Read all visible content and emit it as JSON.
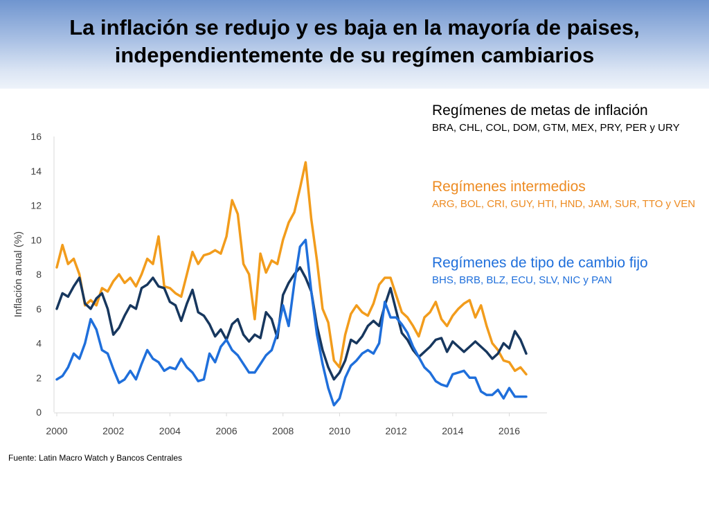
{
  "header": {
    "title_line1": "La inflación se redujo y es baja en la mayoría de paises,",
    "title_line2": "independientemente de su regímen cambiarios"
  },
  "legend": {
    "groups": [
      {
        "name": "Regímenes de metas de inflación",
        "countries": "BRA, CHL, COL, DOM, GTM, MEX, PRY, PER y URY",
        "color": "#000000",
        "countries_color": "#000000"
      },
      {
        "name": "Regímenes intermedios",
        "countries": "ARG, BOL, CRI, GUY, HTI, HND, JAM, SUR, TTO y VEN",
        "color": "#ED8B22",
        "countries_color": "#ED8B22"
      },
      {
        "name": "Regímenes de tipo de cambio fijo",
        "countries": "BHS, BRB, BLZ, ECU, SLV, NIC y PAN",
        "color": "#1F6FDB",
        "countries_color": "#1F6FDB"
      }
    ]
  },
  "footer": {
    "source": "Fuente: Latin Macro Watch y Bancos Centrales"
  },
  "chart_data": {
    "type": "line",
    "title": "",
    "xlabel": "",
    "ylabel": "Inflación anual (%)",
    "xlim": [
      2000,
      2016.6
    ],
    "ylim": [
      0,
      16
    ],
    "x_ticks": [
      2000,
      2002,
      2004,
      2006,
      2008,
      2010,
      2012,
      2014,
      2016
    ],
    "y_ticks": [
      0,
      2,
      4,
      6,
      8,
      10,
      12,
      14,
      16
    ],
    "grid": false,
    "series": [
      {
        "name": "Regímenes de metas de inflación",
        "color": "#17375E",
        "x": [
          2000.0,
          2000.2,
          2000.4,
          2000.6,
          2000.8,
          2001.0,
          2001.2,
          2001.4,
          2001.6,
          2001.8,
          2002.0,
          2002.2,
          2002.4,
          2002.6,
          2002.8,
          2003.0,
          2003.2,
          2003.4,
          2003.6,
          2003.8,
          2004.0,
          2004.2,
          2004.4,
          2004.6,
          2004.8,
          2005.0,
          2005.2,
          2005.4,
          2005.6,
          2005.8,
          2006.0,
          2006.2,
          2006.4,
          2006.6,
          2006.8,
          2007.0,
          2007.2,
          2007.4,
          2007.6,
          2007.8,
          2008.0,
          2008.2,
          2008.4,
          2008.6,
          2008.8,
          2009.0,
          2009.2,
          2009.4,
          2009.6,
          2009.8,
          2010.0,
          2010.2,
          2010.4,
          2010.6,
          2010.8,
          2011.0,
          2011.2,
          2011.4,
          2011.6,
          2011.8,
          2012.0,
          2012.2,
          2012.4,
          2012.6,
          2012.8,
          2013.0,
          2013.2,
          2013.4,
          2013.6,
          2013.8,
          2014.0,
          2014.2,
          2014.4,
          2014.6,
          2014.8,
          2015.0,
          2015.2,
          2015.4,
          2015.6,
          2015.8,
          2016.0,
          2016.2,
          2016.4,
          2016.6
        ],
        "values": [
          6.0,
          6.9,
          6.7,
          7.3,
          7.8,
          6.3,
          6.0,
          6.6,
          6.9,
          6.0,
          4.5,
          4.9,
          5.6,
          6.2,
          6.0,
          7.2,
          7.4,
          7.8,
          7.3,
          7.2,
          6.4,
          6.2,
          5.3,
          6.3,
          7.1,
          5.8,
          5.6,
          5.1,
          4.4,
          4.8,
          4.2,
          5.1,
          5.4,
          4.5,
          4.1,
          4.5,
          4.3,
          5.8,
          5.4,
          4.3,
          6.8,
          7.5,
          8.0,
          8.4,
          7.8,
          7.0,
          5.0,
          3.6,
          2.6,
          1.9,
          2.3,
          3.0,
          4.2,
          4.0,
          4.4,
          5.0,
          5.3,
          5.0,
          6.2,
          7.2,
          5.9,
          4.6,
          4.2,
          3.6,
          3.2,
          3.5,
          3.8,
          4.2,
          4.3,
          3.5,
          4.1,
          3.8,
          3.5,
          3.8,
          4.1,
          3.8,
          3.5,
          3.1,
          3.4,
          4.0,
          3.7,
          4.7,
          4.2,
          3.4
        ]
      },
      {
        "name": "Regímenes intermedios",
        "color": "#F29C1C",
        "x": [
          2000.0,
          2000.2,
          2000.4,
          2000.6,
          2000.8,
          2001.0,
          2001.2,
          2001.4,
          2001.6,
          2001.8,
          2002.0,
          2002.2,
          2002.4,
          2002.6,
          2002.8,
          2003.0,
          2003.2,
          2003.4,
          2003.6,
          2003.8,
          2004.0,
          2004.2,
          2004.4,
          2004.6,
          2004.8,
          2005.0,
          2005.2,
          2005.4,
          2005.6,
          2005.8,
          2006.0,
          2006.2,
          2006.4,
          2006.6,
          2006.8,
          2007.0,
          2007.2,
          2007.4,
          2007.6,
          2007.8,
          2008.0,
          2008.2,
          2008.4,
          2008.6,
          2008.8,
          2009.0,
          2009.2,
          2009.4,
          2009.6,
          2009.8,
          2010.0,
          2010.2,
          2010.4,
          2010.6,
          2010.8,
          2011.0,
          2011.2,
          2011.4,
          2011.6,
          2011.8,
          2012.0,
          2012.2,
          2012.4,
          2012.6,
          2012.8,
          2013.0,
          2013.2,
          2013.4,
          2013.6,
          2013.8,
          2014.0,
          2014.2,
          2014.4,
          2014.6,
          2014.8,
          2015.0,
          2015.2,
          2015.4,
          2015.6,
          2015.8,
          2016.0,
          2016.2,
          2016.4,
          2016.6
        ],
        "values": [
          8.4,
          9.7,
          8.6,
          8.9,
          8.0,
          6.2,
          6.5,
          6.2,
          7.2,
          7.0,
          7.6,
          8.0,
          7.5,
          7.8,
          7.3,
          8.0,
          8.9,
          8.6,
          10.2,
          7.3,
          7.2,
          6.9,
          6.7,
          8.0,
          9.3,
          8.6,
          9.1,
          9.2,
          9.4,
          9.2,
          10.2,
          12.3,
          11.5,
          8.6,
          8.0,
          5.4,
          9.2,
          8.1,
          8.8,
          8.6,
          10.0,
          11.0,
          11.6,
          13.0,
          14.5,
          11.2,
          8.8,
          6.0,
          5.2,
          3.0,
          2.6,
          4.5,
          5.7,
          6.2,
          5.8,
          5.6,
          6.3,
          7.4,
          7.8,
          7.8,
          6.8,
          5.8,
          5.5,
          5.0,
          4.4,
          5.5,
          5.8,
          6.4,
          5.4,
          5.0,
          5.6,
          6.0,
          6.3,
          6.5,
          5.5,
          6.2,
          5.0,
          4.0,
          3.6,
          3.0,
          2.9,
          2.4,
          2.6,
          2.2
        ]
      },
      {
        "name": "Regímenes de tipo de cambio fijo",
        "color": "#1F6FDB",
        "x": [
          2000.0,
          2000.2,
          2000.4,
          2000.6,
          2000.8,
          2001.0,
          2001.2,
          2001.4,
          2001.6,
          2001.8,
          2002.0,
          2002.2,
          2002.4,
          2002.6,
          2002.8,
          2003.0,
          2003.2,
          2003.4,
          2003.6,
          2003.8,
          2004.0,
          2004.2,
          2004.4,
          2004.6,
          2004.8,
          2005.0,
          2005.2,
          2005.4,
          2005.6,
          2005.8,
          2006.0,
          2006.2,
          2006.4,
          2006.6,
          2006.8,
          2007.0,
          2007.2,
          2007.4,
          2007.6,
          2007.8,
          2008.0,
          2008.2,
          2008.4,
          2008.6,
          2008.8,
          2009.0,
          2009.2,
          2009.4,
          2009.6,
          2009.8,
          2010.0,
          2010.2,
          2010.4,
          2010.6,
          2010.8,
          2011.0,
          2011.2,
          2011.4,
          2011.6,
          2011.8,
          2012.0,
          2012.2,
          2012.4,
          2012.6,
          2012.8,
          2013.0,
          2013.2,
          2013.4,
          2013.6,
          2013.8,
          2014.0,
          2014.2,
          2014.4,
          2014.6,
          2014.8,
          2015.0,
          2015.2,
          2015.4,
          2015.6,
          2015.8,
          2016.0,
          2016.2,
          2016.4,
          2016.6
        ],
        "values": [
          1.9,
          2.1,
          2.6,
          3.4,
          3.1,
          4.0,
          5.4,
          4.8,
          3.6,
          3.4,
          2.5,
          1.7,
          1.9,
          2.4,
          1.9,
          2.8,
          3.6,
          3.1,
          2.9,
          2.4,
          2.6,
          2.5,
          3.1,
          2.6,
          2.3,
          1.8,
          1.9,
          3.4,
          2.9,
          3.8,
          4.2,
          3.6,
          3.3,
          2.8,
          2.3,
          2.3,
          2.8,
          3.3,
          3.6,
          4.6,
          6.2,
          5.0,
          7.5,
          9.6,
          10.0,
          7.0,
          4.5,
          2.8,
          1.4,
          0.4,
          0.8,
          2.0,
          2.7,
          3.0,
          3.4,
          3.6,
          3.4,
          4.0,
          6.4,
          5.5,
          5.5,
          5.1,
          4.6,
          3.8,
          3.2,
          2.6,
          2.3,
          1.8,
          1.6,
          1.5,
          2.2,
          2.3,
          2.4,
          2.0,
          2.0,
          1.2,
          1.0,
          1.0,
          1.3,
          0.8,
          1.4,
          0.9,
          0.9,
          0.9
        ]
      }
    ]
  }
}
